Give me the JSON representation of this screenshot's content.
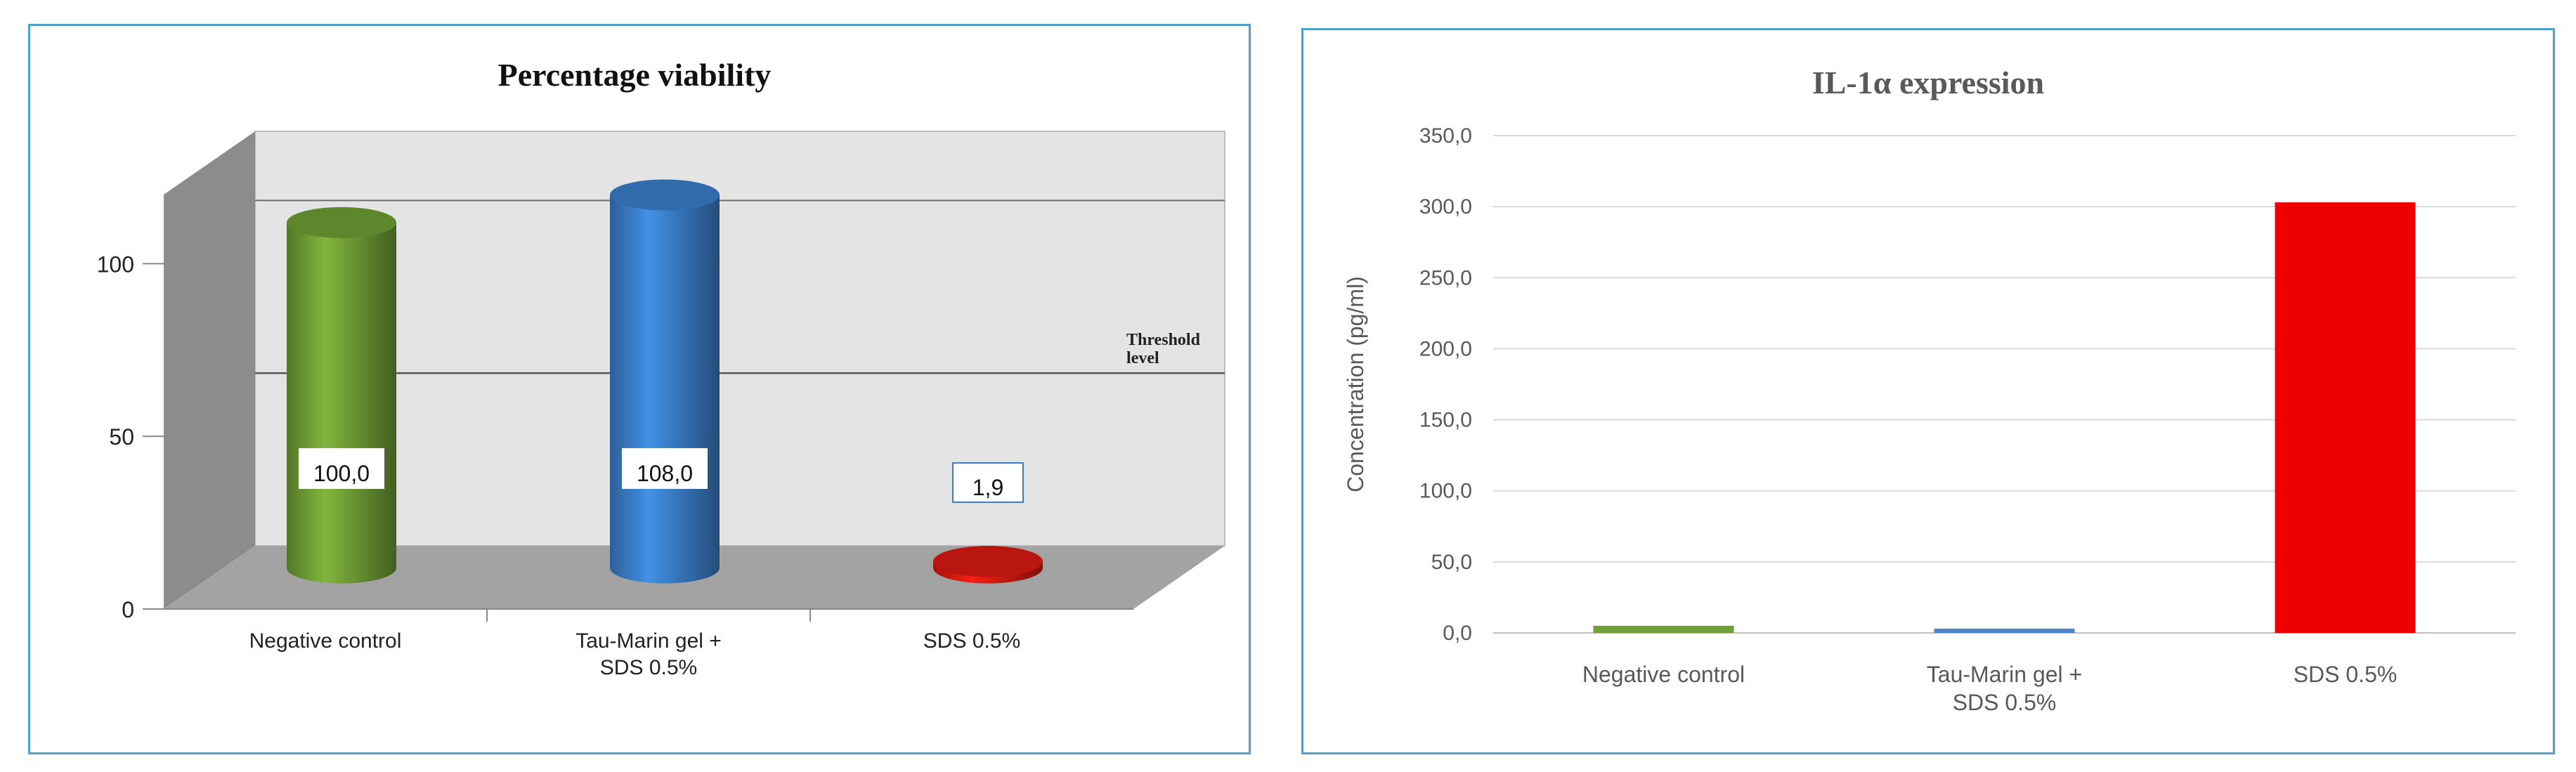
{
  "chart_data": [
    {
      "type": "bar",
      "style": "3d-cylinder",
      "title": "Percentage viability",
      "categories": [
        "Negative control",
        "Tau-Marin gel +\nSDS 0.5%",
        "SDS 0.5%"
      ],
      "series": [
        {
          "values": [
            100.0,
            108.0,
            1.9
          ]
        }
      ],
      "data_labels": [
        "100,0",
        "108,0",
        "1,9"
      ],
      "colors": [
        "#6f9e35",
        "#3a7ec9",
        "#d81a10"
      ],
      "ylim": [
        0,
        120
      ],
      "yticks": [
        "0",
        "50",
        "100"
      ],
      "threshold": {
        "value": 50,
        "label": "Threshold\nlevel"
      },
      "grid": true
    },
    {
      "type": "bar",
      "title": "IL-1α expression",
      "ylabel": "Concentration (pg/ml)",
      "categories": [
        "Negative control",
        "Tau-Marin gel +\nSDS 0.5%",
        "SDS 0.5%"
      ],
      "series": [
        {
          "values": [
            5.0,
            3.0,
            303.0
          ]
        }
      ],
      "colors": [
        "#70a03a",
        "#4a86c8",
        "#ee0000"
      ],
      "ylim": [
        0,
        350
      ],
      "yticks": [
        "0,0",
        "50,0",
        "100,0",
        "150,0",
        "200,0",
        "250,0",
        "300,0",
        "350,0"
      ],
      "grid": true
    }
  ]
}
